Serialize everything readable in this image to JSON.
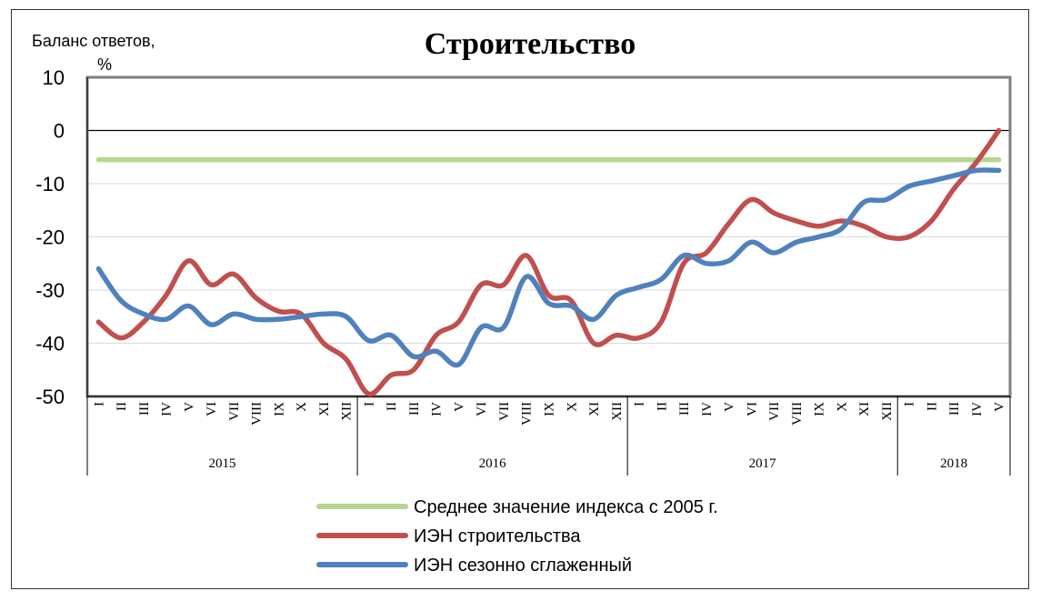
{
  "chart_data": {
    "type": "line",
    "title": "Строительство",
    "ylabel_line1": "Баланс ответов,",
    "ylabel_line2": "%",
    "ylim": [
      -50,
      10
    ],
    "yticks": [
      "10",
      "0",
      "-10",
      "-20",
      "-30",
      "-40",
      "-50"
    ],
    "ytick_values": [
      10,
      0,
      -10,
      -20,
      -30,
      -40,
      -50
    ],
    "grid": true,
    "legend_position": "bottom",
    "month_labels": [
      "I",
      "II",
      "III",
      "IV",
      "V",
      "VI",
      "VII",
      "VIII",
      "IX",
      "X",
      "XI",
      "XII",
      "I",
      "II",
      "III",
      "IV",
      "V",
      "VI",
      "VII",
      "VIII",
      "IX",
      "X",
      "XI",
      "XII",
      "I",
      "II",
      "III",
      "IV",
      "V",
      "VI",
      "VII",
      "VIII",
      "IX",
      "X",
      "XI",
      "XII",
      "I",
      "II",
      "III",
      "IV",
      "V"
    ],
    "years": [
      {
        "label": "2015",
        "months": 12
      },
      {
        "label": "2016",
        "months": 12
      },
      {
        "label": "2017",
        "months": 12
      },
      {
        "label": "2018",
        "months": 5
      }
    ],
    "series": [
      {
        "name": "Среднее значение индекса с 2005 г.",
        "color": "#b7d58e",
        "values": [
          -5.5,
          -5.5,
          -5.5,
          -5.5,
          -5.5,
          -5.5,
          -5.5,
          -5.5,
          -5.5,
          -5.5,
          -5.5,
          -5.5,
          -5.5,
          -5.5,
          -5.5,
          -5.5,
          -5.5,
          -5.5,
          -5.5,
          -5.5,
          -5.5,
          -5.5,
          -5.5,
          -5.5,
          -5.5,
          -5.5,
          -5.5,
          -5.5,
          -5.5,
          -5.5,
          -5.5,
          -5.5,
          -5.5,
          -5.5,
          -5.5,
          -5.5,
          -5.5,
          -5.5,
          -5.5,
          -5.5,
          -5.5
        ]
      },
      {
        "name": "ИЭН строительства",
        "color": "#c0504d",
        "values": [
          -36,
          -39,
          -36,
          -31,
          -24.5,
          -29,
          -27,
          -31.5,
          -34,
          -34.5,
          -40,
          -43,
          -49.5,
          -46,
          -45,
          -38.5,
          -36,
          -29,
          -29,
          -23.5,
          -31,
          -32,
          -40,
          -38.5,
          -39,
          -36,
          -25,
          -23,
          -17.5,
          -13,
          -15.5,
          -17,
          -18,
          -17,
          -18,
          -20,
          -20,
          -17,
          -11,
          -6,
          0
        ]
      },
      {
        "name": "ИЭН сезонно сглаженный",
        "color": "#4f81bd",
        "values": [
          -26,
          -32,
          -34.5,
          -35.5,
          -33,
          -36.5,
          -34.5,
          -35.5,
          -35.5,
          -35,
          -34.5,
          -35,
          -39.5,
          -38.5,
          -42.5,
          -41.5,
          -44,
          -37,
          -37,
          -27.5,
          -32.5,
          -33,
          -35.5,
          -31,
          -29.5,
          -28,
          -23.5,
          -25,
          -24.5,
          -21,
          -23,
          -21,
          -20,
          -18.5,
          -13.5,
          -13,
          -10.5,
          -9.5,
          -8.5,
          -7.5,
          -7.5
        ]
      }
    ]
  }
}
